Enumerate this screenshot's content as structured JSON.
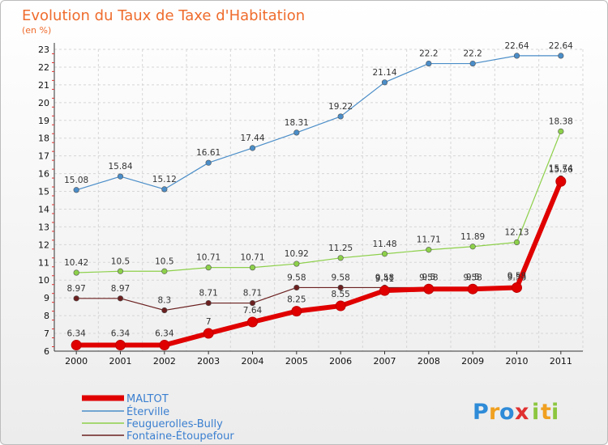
{
  "chart_data": {
    "type": "line",
    "title": "Evolution du Taux de Taxe d'Habitation",
    "subtitle": "(en %)",
    "x": [
      "2000",
      "2001",
      "2002",
      "2003",
      "2004",
      "2005",
      "2006",
      "2007",
      "2008",
      "2009",
      "2010",
      "2011"
    ],
    "ylim": [
      6,
      23
    ],
    "yticks": [
      6,
      7,
      8,
      9,
      10,
      11,
      12,
      13,
      14,
      15,
      16,
      17,
      18,
      19,
      20,
      21,
      22,
      23
    ],
    "grid": true,
    "legend_position": "bottom-left",
    "series": [
      {
        "name": "MALTOT",
        "color": "#e00000",
        "values": [
          6.34,
          6.34,
          6.34,
          7,
          7.64,
          8.25,
          8.55,
          9.41,
          9.5,
          9.5,
          9.58,
          15.56
        ],
        "labels": [
          "6.34",
          "6.34",
          "6.34",
          "7",
          "7.64",
          "8.25",
          "8.55",
          "9.41",
          "9.5",
          "9.5",
          "9.58",
          "15.56"
        ]
      },
      {
        "name": "Éterville",
        "color": "#4a8dc8",
        "values": [
          15.08,
          15.84,
          15.12,
          16.61,
          17.44,
          18.31,
          19.22,
          21.14,
          22.2,
          22.2,
          22.64,
          22.64
        ],
        "labels": [
          "15.08",
          "15.84",
          "15.12",
          "16.61",
          "17.44",
          "18.31",
          "19.22",
          "21.14",
          "22.2",
          "22.2",
          "22.64",
          "22.64"
        ]
      },
      {
        "name": "Feuguerolles-Bully",
        "color": "#8dd04a",
        "values": [
          10.42,
          10.5,
          10.5,
          10.71,
          10.71,
          10.92,
          11.25,
          11.48,
          11.71,
          11.89,
          12.13,
          18.38
        ],
        "labels": [
          "10.42",
          "10.5",
          "10.5",
          "10.71",
          "10.71",
          "10.92",
          "11.25",
          "11.48",
          "11.71",
          "11.89",
          "12.13",
          "18.38"
        ]
      },
      {
        "name": "Fontaine-Étoupefour",
        "color": "#6b2020",
        "values": [
          8.97,
          8.97,
          8.3,
          8.71,
          8.71,
          9.58,
          9.58,
          9.58,
          9.58,
          9.58,
          9.58,
          15.74
        ],
        "labels": [
          "8.97",
          "8.97",
          "8.3",
          "8.71",
          "8.71",
          "9.58",
          "9.58",
          "9.58",
          "9.58",
          "9.58",
          "9.58",
          "15.74"
        ]
      }
    ]
  },
  "logo": {
    "letters": [
      "P",
      "r",
      "o",
      "x",
      "i",
      "t",
      "i"
    ],
    "colors": [
      "#2e8bd8",
      "#f0a020",
      "#2e8bd8",
      "#e03030",
      "#8cc63f",
      "#f0a020",
      "#8cc63f"
    ]
  }
}
